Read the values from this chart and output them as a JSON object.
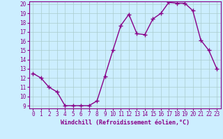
{
  "x": [
    0,
    1,
    2,
    3,
    4,
    5,
    6,
    7,
    8,
    9,
    10,
    11,
    12,
    13,
    14,
    15,
    16,
    17,
    18,
    19,
    20,
    21,
    22,
    23
  ],
  "y": [
    12.5,
    12.0,
    11.0,
    10.5,
    9.0,
    9.0,
    9.0,
    9.0,
    9.5,
    12.2,
    15.0,
    17.7,
    18.9,
    16.8,
    16.7,
    18.4,
    19.0,
    20.2,
    20.1,
    20.1,
    19.3,
    16.1,
    15.0,
    13.0
  ],
  "line_color": "#880088",
  "marker": "+",
  "marker_size": 4,
  "marker_lw": 1.0,
  "bg_color": "#cceeff",
  "grid_color": "#aacccc",
  "xlabel": "Windchill (Refroidissement éolien,°C)",
  "ylim": [
    9,
    20
  ],
  "xlim": [
    -0.5,
    23.5
  ],
  "yticks": [
    9,
    10,
    11,
    12,
    13,
    14,
    15,
    16,
    17,
    18,
    19,
    20
  ],
  "xticks": [
    0,
    1,
    2,
    3,
    4,
    5,
    6,
    7,
    8,
    9,
    10,
    11,
    12,
    13,
    14,
    15,
    16,
    17,
    18,
    19,
    20,
    21,
    22,
    23
  ],
  "tick_label_color": "#880088",
  "xlabel_color": "#880088",
  "spine_color": "#880088",
  "tick_fontsize": 5.5,
  "xlabel_fontsize": 6.0,
  "linewidth": 1.0
}
